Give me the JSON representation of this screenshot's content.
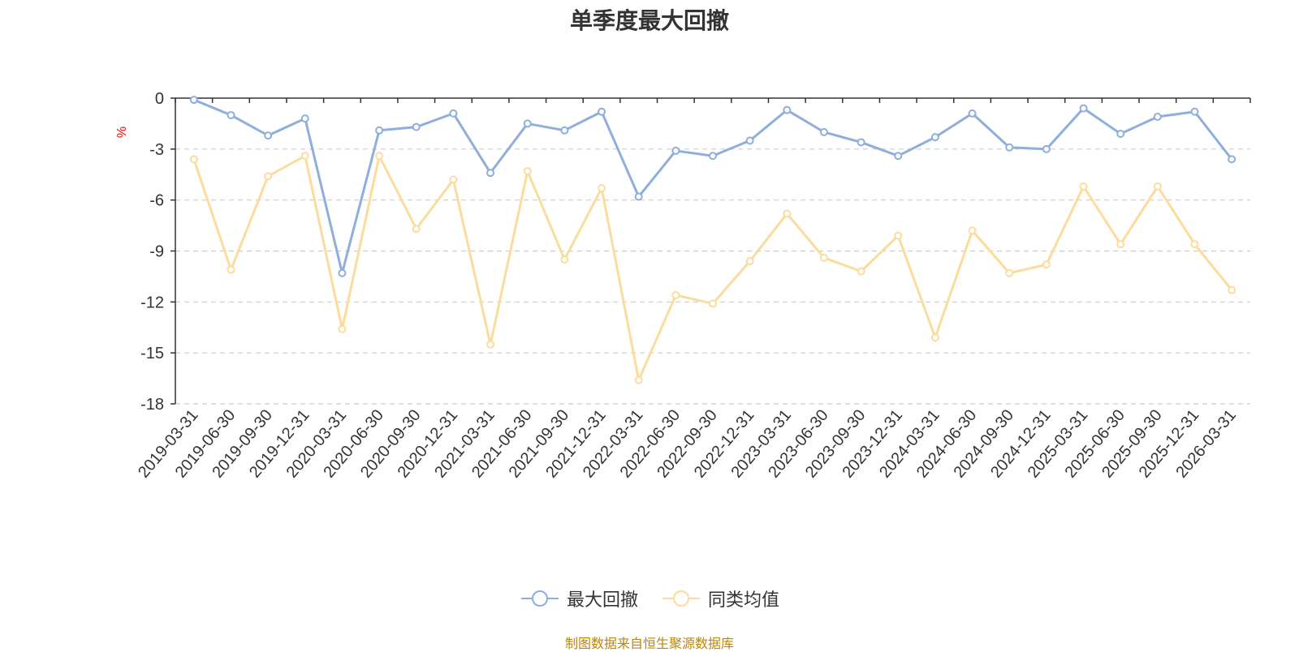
{
  "colors": {
    "series1": "#8eaedc",
    "series2": "#fcdc9c",
    "yunit": "#ff0000",
    "footer": "#b8860b"
  },
  "chart_data": {
    "type": "line",
    "title": "单季度最大回撤",
    "ylabel": "%",
    "xlabel": "",
    "ylim": [
      -18,
      0
    ],
    "yticks": [
      0,
      -3,
      -6,
      -9,
      -12,
      -15,
      -18
    ],
    "ytick_labels": [
      "0",
      "-3",
      "-6",
      "-9",
      "-12",
      "-15",
      "-18"
    ],
    "grid": true,
    "legend": "bottom-center",
    "categories": [
      "2019-03-31",
      "2019-06-30",
      "2019-09-30",
      "2019-12-31",
      "2020-03-31",
      "2020-06-30",
      "2020-09-30",
      "2020-12-31",
      "2021-03-31",
      "2021-06-30",
      "2021-09-30",
      "2021-12-31",
      "2022-03-31",
      "2022-06-30",
      "2022-09-30",
      "2022-12-31",
      "2023-03-31",
      "2023-06-30",
      "2023-09-30",
      "2023-12-31",
      "2024-03-31",
      "2024-06-30",
      "2024-09-30",
      "2024-12-31",
      "2025-03-31",
      "2025-06-30",
      "2025-09-30",
      "2025-12-31",
      "2026-03-31"
    ],
    "series": [
      {
        "name": "最大回撤",
        "values": [
          -0.1,
          -1.0,
          -2.2,
          -1.2,
          -10.3,
          -1.9,
          -1.7,
          -0.9,
          -4.4,
          -1.5,
          -1.9,
          -0.8,
          -5.8,
          -3.1,
          -3.4,
          -2.5,
          -0.7,
          -2.0,
          -2.6,
          -3.4,
          -2.3,
          -0.9,
          -2.9,
          -3.0,
          -0.6,
          -2.1,
          -1.1,
          -0.8,
          -3.6
        ]
      },
      {
        "name": "同类均值",
        "values": [
          -3.6,
          -10.1,
          -4.6,
          -3.4,
          -13.6,
          -3.4,
          -7.7,
          -4.8,
          -14.5,
          -4.3,
          -9.5,
          -5.3,
          -16.6,
          -11.6,
          -12.1,
          -9.6,
          -6.8,
          -9.4,
          -10.2,
          -8.1,
          -14.1,
          -7.8,
          -10.3,
          -9.8,
          -5.2,
          -8.6,
          -5.2,
          -8.6,
          -11.3
        ]
      }
    ]
  },
  "footer": {
    "text": "制图数据来自恒生聚源数据库"
  }
}
